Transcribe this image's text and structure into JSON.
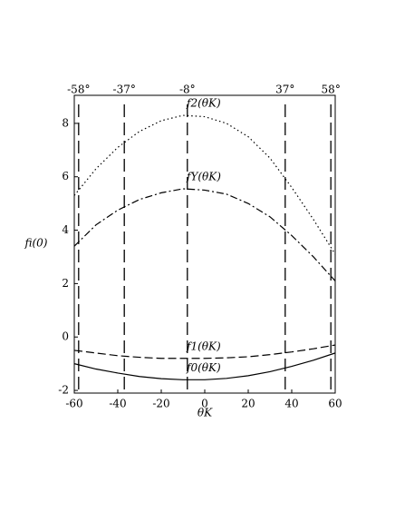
{
  "chart_data": {
    "type": "line",
    "xlabel": "θK",
    "ylabel": "fi(0)",
    "x": [
      -60,
      -50,
      -40,
      -30,
      -20,
      -10,
      0,
      10,
      20,
      30,
      40,
      50,
      60
    ],
    "series": [
      {
        "name": "f2(θK)",
        "color": "#000000",
        "dash": "1.5,3",
        "values": [
          5.3,
          6.3,
          7.1,
          7.7,
          8.1,
          8.3,
          8.25,
          8.0,
          7.5,
          6.7,
          5.6,
          4.4,
          3.1
        ]
      },
      {
        "name": "fY(θK)",
        "color": "#000000",
        "dash": "8,3,2,3",
        "values": [
          3.4,
          4.2,
          4.75,
          5.15,
          5.4,
          5.55,
          5.5,
          5.35,
          5.0,
          4.5,
          3.8,
          3.0,
          2.1
        ]
      },
      {
        "name": "f1(θK)",
        "color": "#000000",
        "dash": "9,4",
        "values": [
          -0.5,
          -0.6,
          -0.7,
          -0.76,
          -0.8,
          -0.8,
          -0.8,
          -0.78,
          -0.74,
          -0.66,
          -0.56,
          -0.44,
          -0.3
        ]
      },
      {
        "name": "f0(θK)",
        "color": "#000000",
        "dash": "none",
        "values": [
          -1.0,
          -1.2,
          -1.35,
          -1.48,
          -1.56,
          -1.6,
          -1.6,
          -1.55,
          -1.45,
          -1.3,
          -1.1,
          -0.87,
          -0.6
        ]
      }
    ],
    "vlines": [
      {
        "value": -58,
        "label": "-58°"
      },
      {
        "value": -37,
        "label": "-37°"
      },
      {
        "value": -8,
        "label": "-8°"
      },
      {
        "value": 37,
        "label": "37°"
      },
      {
        "value": 58,
        "label": "58°"
      }
    ],
    "xlim": [
      -60,
      60
    ],
    "xticks": [
      -60,
      -40,
      -20,
      0,
      20,
      40,
      60
    ],
    "ylim": [
      -2.1,
      9.05
    ],
    "yticks": [
      -2,
      0,
      2,
      4,
      6,
      8
    ]
  }
}
